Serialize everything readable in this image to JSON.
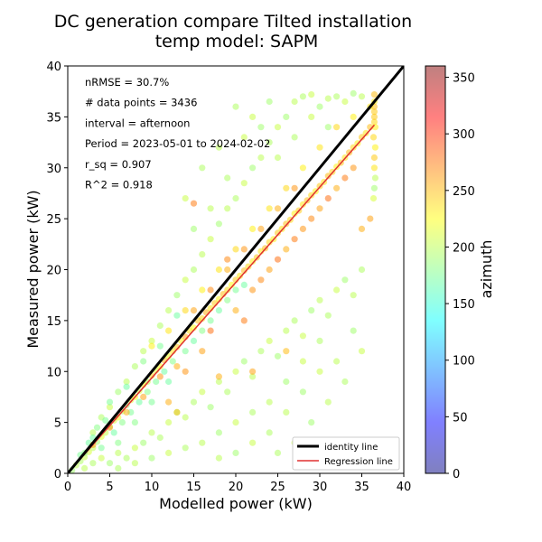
{
  "chart_data": {
    "type": "scatter",
    "title_lines": [
      "DC generation compare Tilted installation",
      "temp model: SAPM"
    ],
    "xlabel": "Modelled power (kW)",
    "ylabel": "Measured power (kW)",
    "xlim": [
      0,
      40
    ],
    "ylim": [
      0,
      40
    ],
    "xticks": [
      "0",
      "5",
      "10",
      "15",
      "20",
      "25",
      "30",
      "35",
      "40"
    ],
    "yticks": [
      "0",
      "5",
      "10",
      "15",
      "20",
      "25",
      "30",
      "35",
      "40"
    ],
    "grid": false,
    "annotations": [
      "nRMSE = 30.7%",
      "# data points = 3436",
      "interval = afternoon",
      "Period = 2023-05-01 to 2024-02-02",
      "r_sq = 0.907",
      "R^2 = 0.918"
    ],
    "legend": {
      "placement": "lower-right",
      "entries": [
        {
          "label": "identity line",
          "color": "#000000"
        },
        {
          "label": "Regression line",
          "color": "#e03030"
        }
      ]
    },
    "identity_line": {
      "x": [
        0,
        40
      ],
      "y": [
        0,
        40
      ]
    },
    "regression_line": {
      "x": [
        0,
        36.5
      ],
      "y": [
        0,
        34.2
      ]
    },
    "colorbar": {
      "label": "azimuth",
      "range": [
        0,
        360
      ],
      "ticks": [
        "0",
        "50",
        "100",
        "150",
        "200",
        "250",
        "300",
        "350"
      ],
      "colormap": "jet"
    },
    "points": [
      [
        0.5,
        0.3,
        190
      ],
      [
        1,
        0.8,
        200
      ],
      [
        1.5,
        1.2,
        195
      ],
      [
        2,
        1.6,
        205
      ],
      [
        2.5,
        2.1,
        210
      ],
      [
        3,
        2.5,
        200
      ],
      [
        3.5,
        3.1,
        190
      ],
      [
        4,
        3.6,
        215
      ],
      [
        4.5,
        4,
        205
      ],
      [
        5,
        4.6,
        195
      ],
      [
        5.5,
        5.2,
        210
      ],
      [
        6,
        5.5,
        220
      ],
      [
        6.5,
        6.1,
        200
      ],
      [
        7,
        6.7,
        190
      ],
      [
        7.5,
        7.2,
        215
      ],
      [
        8,
        7.5,
        225
      ],
      [
        8.5,
        8.1,
        210
      ],
      [
        9,
        8.7,
        230
      ],
      [
        9.5,
        9,
        205
      ],
      [
        10,
        9.6,
        240
      ],
      [
        10.5,
        10.1,
        215
      ],
      [
        11,
        10.5,
        225
      ],
      [
        11.5,
        11.1,
        250
      ],
      [
        12,
        11.5,
        220
      ],
      [
        12.5,
        12,
        235
      ],
      [
        13,
        12.4,
        245
      ],
      [
        13.5,
        13,
        230
      ],
      [
        14,
        13.4,
        260
      ],
      [
        14.5,
        14,
        240
      ],
      [
        15,
        14.3,
        225
      ],
      [
        15.5,
        15,
        250
      ],
      [
        16,
        15.2,
        240
      ],
      [
        16.5,
        15.8,
        255
      ],
      [
        17,
        16.2,
        235
      ],
      [
        17.5,
        16.7,
        245
      ],
      [
        18,
        17.1,
        230
      ],
      [
        18.5,
        17.6,
        250
      ],
      [
        19,
        18,
        240
      ],
      [
        19.5,
        18.5,
        225
      ],
      [
        20,
        19,
        245
      ],
      [
        20.5,
        19.4,
        235
      ],
      [
        21,
        19.9,
        250
      ],
      [
        21.5,
        20.3,
        240
      ],
      [
        22,
        20.8,
        230
      ],
      [
        22.5,
        21.2,
        245
      ],
      [
        23,
        21.8,
        235
      ],
      [
        23.5,
        22.1,
        250
      ],
      [
        24,
        22.7,
        240
      ],
      [
        24.5,
        23,
        230
      ],
      [
        25,
        23.6,
        245
      ],
      [
        25.5,
        24,
        235
      ],
      [
        26,
        24.5,
        250
      ],
      [
        26.5,
        24.9,
        240
      ],
      [
        27,
        25.5,
        230
      ],
      [
        27.5,
        25.8,
        245
      ],
      [
        28,
        26.4,
        235
      ],
      [
        28.5,
        26.8,
        250
      ],
      [
        29,
        27.3,
        240
      ],
      [
        29.5,
        27.7,
        230
      ],
      [
        30,
        28.2,
        245
      ],
      [
        30.5,
        28.6,
        235
      ],
      [
        31,
        29.2,
        250
      ],
      [
        31.5,
        29.6,
        240
      ],
      [
        32,
        30.1,
        230
      ],
      [
        32.5,
        30.5,
        245
      ],
      [
        33,
        31,
        235
      ],
      [
        33.5,
        31.5,
        250
      ],
      [
        34,
        32,
        240
      ],
      [
        34.5,
        32.4,
        230
      ],
      [
        35,
        33,
        245
      ],
      [
        35.5,
        33.4,
        235
      ],
      [
        36,
        34,
        250
      ],
      [
        36.5,
        34.5,
        240
      ],
      [
        36.5,
        35.5,
        245
      ],
      [
        36.5,
        36.5,
        235
      ],
      [
        36.5,
        37.2,
        250
      ],
      [
        36.4,
        33,
        240
      ],
      [
        36.6,
        32,
        230
      ],
      [
        36.5,
        31,
        245
      ],
      [
        36.5,
        30,
        235
      ],
      [
        36.6,
        29,
        200
      ],
      [
        36.5,
        28,
        190
      ],
      [
        36.4,
        27,
        210
      ],
      [
        36.5,
        36,
        250
      ],
      [
        36.5,
        35,
        245
      ],
      [
        36.6,
        34,
        230
      ],
      [
        3,
        4,
        200
      ],
      [
        4,
        5.5,
        195
      ],
      [
        5,
        6.5,
        205
      ],
      [
        6,
        8,
        190
      ],
      [
        7,
        9,
        200
      ],
      [
        8,
        10.5,
        195
      ],
      [
        9,
        12,
        200
      ],
      [
        10,
        13,
        205
      ],
      [
        11,
        14.5,
        195
      ],
      [
        12,
        16,
        200
      ],
      [
        13,
        17.5,
        190
      ],
      [
        14,
        19,
        205
      ],
      [
        15,
        20,
        195
      ],
      [
        16,
        21.5,
        200
      ],
      [
        17,
        23,
        205
      ],
      [
        18,
        24.5,
        190
      ],
      [
        19,
        26,
        200
      ],
      [
        20,
        27,
        195
      ],
      [
        21,
        28.5,
        205
      ],
      [
        22,
        30,
        190
      ],
      [
        23,
        31,
        200
      ],
      [
        24,
        32.5,
        195
      ],
      [
        25,
        34,
        205
      ],
      [
        26,
        35,
        190
      ],
      [
        27,
        36.5,
        200
      ],
      [
        28,
        37,
        195
      ],
      [
        29,
        37.2,
        205
      ],
      [
        30,
        36,
        190
      ],
      [
        31,
        36.8,
        200
      ],
      [
        32,
        37,
        195
      ],
      [
        33,
        36.5,
        205
      ],
      [
        34,
        37.3,
        190
      ],
      [
        35,
        37,
        200
      ],
      [
        20,
        36,
        195
      ],
      [
        22,
        35,
        205
      ],
      [
        24,
        36.5,
        190
      ],
      [
        18,
        32,
        200
      ],
      [
        16,
        30,
        195
      ],
      [
        14,
        27,
        205
      ],
      [
        15,
        24,
        190
      ],
      [
        17,
        26,
        200
      ],
      [
        19,
        29,
        195
      ],
      [
        21,
        33,
        205
      ],
      [
        23,
        34,
        190
      ],
      [
        25,
        31,
        200
      ],
      [
        27,
        33,
        195
      ],
      [
        29,
        35,
        205
      ],
      [
        31,
        34,
        190
      ],
      [
        2,
        0.5,
        200
      ],
      [
        3,
        1,
        195
      ],
      [
        4,
        1.5,
        205
      ],
      [
        5,
        1,
        190
      ],
      [
        6,
        2,
        200
      ],
      [
        7,
        1.5,
        195
      ],
      [
        8,
        2.5,
        205
      ],
      [
        9,
        3,
        190
      ],
      [
        10,
        4,
        200
      ],
      [
        11,
        3.5,
        195
      ],
      [
        12,
        5,
        205
      ],
      [
        13,
        6,
        190
      ],
      [
        14,
        5.5,
        200
      ],
      [
        15,
        7,
        195
      ],
      [
        16,
        8,
        205
      ],
      [
        17,
        6.5,
        190
      ],
      [
        18,
        9,
        200
      ],
      [
        19,
        8,
        195
      ],
      [
        20,
        10,
        205
      ],
      [
        21,
        11,
        190
      ],
      [
        22,
        9.5,
        200
      ],
      [
        23,
        12,
        195
      ],
      [
        24,
        13,
        205
      ],
      [
        25,
        11.5,
        190
      ],
      [
        26,
        14,
        200
      ],
      [
        27,
        15,
        195
      ],
      [
        28,
        13.5,
        205
      ],
      [
        29,
        16,
        190
      ],
      [
        30,
        17,
        200
      ],
      [
        31,
        15.5,
        195
      ],
      [
        32,
        18,
        205
      ],
      [
        33,
        19,
        190
      ],
      [
        34,
        17.5,
        200
      ],
      [
        35,
        20,
        195
      ],
      [
        30,
        10,
        205
      ],
      [
        28,
        8,
        190
      ],
      [
        26,
        6,
        200
      ],
      [
        24,
        4,
        195
      ],
      [
        22,
        3,
        205
      ],
      [
        20,
        2,
        190
      ],
      [
        18,
        1.5,
        200
      ],
      [
        25,
        2,
        195
      ],
      [
        27,
        3,
        205
      ],
      [
        29,
        5,
        190
      ],
      [
        31,
        7,
        200
      ],
      [
        33,
        9,
        195
      ],
      [
        35,
        12,
        205
      ],
      [
        34,
        14,
        190
      ],
      [
        32,
        11,
        200
      ],
      [
        30,
        13,
        195
      ],
      [
        28,
        11,
        205
      ],
      [
        26,
        9,
        190
      ],
      [
        24,
        7,
        200
      ],
      [
        22,
        6,
        195
      ],
      [
        20,
        5,
        205
      ],
      [
        18,
        4,
        190
      ],
      [
        16,
        3,
        200
      ],
      [
        14,
        2.5,
        195
      ],
      [
        12,
        2,
        205
      ],
      [
        10,
        1.5,
        190
      ],
      [
        8,
        1,
        200
      ],
      [
        6,
        0.5,
        195
      ],
      [
        5,
        7,
        175
      ],
      [
        7,
        8.5,
        170
      ],
      [
        9,
        11,
        180
      ],
      [
        11,
        12.5,
        175
      ],
      [
        13,
        15.5,
        170
      ],
      [
        8,
        5,
        180
      ],
      [
        10,
        7,
        175
      ],
      [
        12,
        9,
        170
      ],
      [
        6,
        3,
        180
      ],
      [
        4,
        2.5,
        175
      ],
      [
        3,
        3.5,
        170
      ],
      [
        2,
        2,
        180
      ],
      [
        1.5,
        1.8,
        175
      ],
      [
        2.5,
        3,
        170
      ],
      [
        3.5,
        4.5,
        180
      ],
      [
        4.5,
        5.2,
        175
      ],
      [
        5.5,
        4,
        170
      ],
      [
        6.5,
        5,
        180
      ],
      [
        7.5,
        6,
        175
      ],
      [
        8.5,
        7,
        170
      ],
      [
        9.5,
        8,
        180
      ],
      [
        10.5,
        9,
        175
      ],
      [
        11.5,
        10,
        170
      ],
      [
        12.5,
        11,
        180
      ],
      [
        14,
        12,
        175
      ],
      [
        15,
        13,
        170
      ],
      [
        16,
        14,
        180
      ],
      [
        17,
        15,
        175
      ],
      [
        18,
        16,
        170
      ],
      [
        19,
        17,
        180
      ],
      [
        20,
        18,
        175
      ],
      [
        21,
        18.5,
        170
      ],
      [
        13,
        10.5,
        255
      ],
      [
        11,
        9.5,
        265
      ],
      [
        15,
        16,
        260
      ],
      [
        17,
        18,
        270
      ],
      [
        19,
        20,
        255
      ],
      [
        21,
        22,
        265
      ],
      [
        23,
        24,
        260
      ],
      [
        25,
        26,
        255
      ],
      [
        27,
        28,
        265
      ],
      [
        12,
        7,
        255
      ],
      [
        14,
        10,
        265
      ],
      [
        16,
        12,
        260
      ],
      [
        20,
        16,
        255
      ],
      [
        22,
        18,
        265
      ],
      [
        24,
        20,
        260
      ],
      [
        26,
        22,
        255
      ],
      [
        28,
        24,
        265
      ],
      [
        30,
        26,
        260
      ],
      [
        32,
        28,
        255
      ],
      [
        34,
        30,
        265
      ],
      [
        36,
        25,
        260
      ],
      [
        35,
        24,
        255
      ],
      [
        15,
        26.5,
        275
      ],
      [
        19,
        21,
        270
      ],
      [
        17,
        14,
        280
      ],
      [
        21,
        15,
        275
      ],
      [
        23,
        19,
        270
      ],
      [
        25,
        21,
        280
      ],
      [
        27,
        23,
        275
      ],
      [
        29,
        25,
        270
      ],
      [
        31,
        27,
        280
      ],
      [
        33,
        29,
        275
      ],
      [
        9,
        7.5,
        260
      ],
      [
        7,
        6,
        255
      ],
      [
        5,
        4.5,
        265
      ],
      [
        3,
        2.8,
        260
      ],
      [
        13,
        6,
        250
      ],
      [
        18,
        9.5,
        255
      ],
      [
        22,
        10,
        260
      ],
      [
        26,
        12,
        250
      ],
      [
        10,
        12.5,
        230
      ],
      [
        12,
        14,
        235
      ],
      [
        14,
        16,
        240
      ],
      [
        16,
        18,
        230
      ],
      [
        18,
        20,
        235
      ],
      [
        20,
        22,
        240
      ],
      [
        22,
        24,
        230
      ],
      [
        24,
        26,
        235
      ],
      [
        26,
        28,
        240
      ],
      [
        28,
        30,
        230
      ],
      [
        30,
        32,
        235
      ],
      [
        32,
        34,
        240
      ],
      [
        34,
        35,
        230
      ],
      [
        36,
        36,
        235
      ]
    ]
  }
}
